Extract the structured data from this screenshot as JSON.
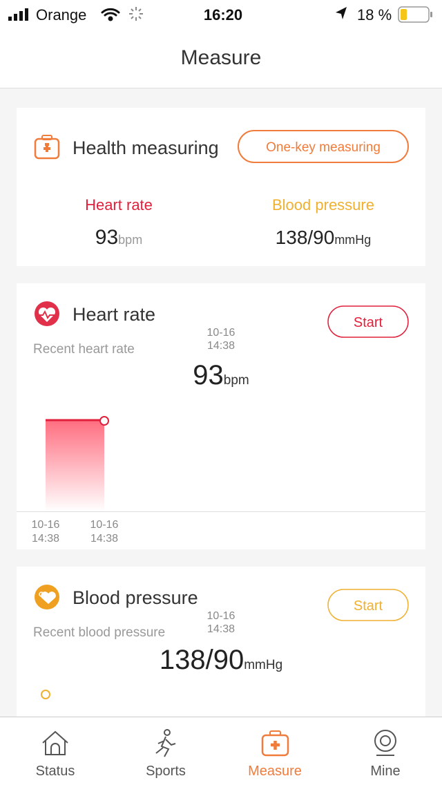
{
  "status_bar": {
    "carrier": "Orange",
    "time": "16:20",
    "battery": "18 %"
  },
  "header": {
    "title": "Measure"
  },
  "health_card": {
    "title": "Health measuring",
    "button": "One-key measuring",
    "heart_rate": {
      "label": "Heart rate",
      "value": "93",
      "unit": "bpm"
    },
    "blood_pressure": {
      "label": "Blood pressure",
      "value": "138/90",
      "unit": "mmHg"
    }
  },
  "heart_rate_card": {
    "title": "Heart rate",
    "button": "Start",
    "subtitle": "Recent heart rate",
    "date": "10-16",
    "time": "14:38",
    "value": "93",
    "unit": "bpm",
    "chart_labels": [
      {
        "date": "10-16",
        "time": "14:38"
      },
      {
        "date": "10-16",
        "time": "14:38"
      }
    ]
  },
  "blood_pressure_card": {
    "title": "Blood pressure",
    "button": "Start",
    "subtitle": "Recent blood pressure",
    "date": "10-16",
    "time": "14:38",
    "value": "138/90",
    "unit": "mmHg"
  },
  "tabs": [
    "Status",
    "Sports",
    "Measure",
    "Mine"
  ]
}
